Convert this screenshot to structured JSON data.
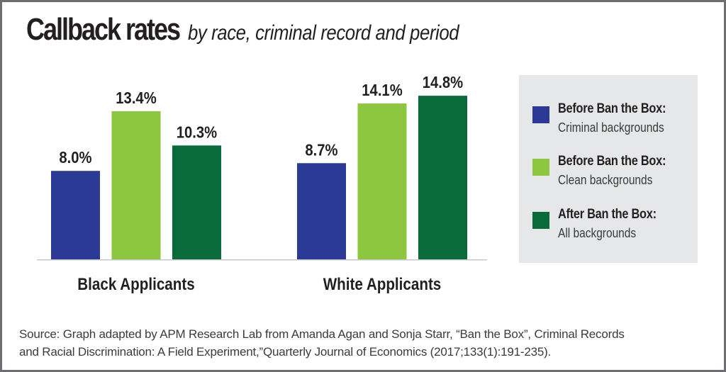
{
  "title": {
    "main": "Callback rates",
    "subtitle": "by race, criminal record and period"
  },
  "legend": {
    "items": [
      {
        "line1": "Before Ban the Box:",
        "line2": "Criminal backgrounds",
        "color": "#2b3a94"
      },
      {
        "line1": "Before Ban the Box:",
        "line2": "Clean backgrounds",
        "color": "#8dc63f"
      },
      {
        "line1": "After Ban the Box:",
        "line2": "All backgrounds",
        "color": "#0a6b3a"
      }
    ]
  },
  "source": {
    "line1": "Source: Graph adapted by APM Research Lab from Amanda Agan and Sonja Starr, “Ban the Box”, Criminal Records",
    "line2": "and Racial Discrimination: A Field Experiment,”Quarterly Journal of Economics (2017;133(1):191-235)."
  },
  "chart_data": {
    "type": "bar",
    "title": "Callback rates by race, criminal record and period",
    "xlabel": "",
    "ylabel": "",
    "ylim": [
      0,
      15
    ],
    "grid": false,
    "legend_position": "right",
    "categories": [
      "Black Applicants",
      "White Applicants"
    ],
    "series": [
      {
        "name": "Before Ban the Box: Criminal backgrounds",
        "color": "#2b3a94",
        "values": [
          8.0,
          8.7
        ],
        "labels": [
          "8.0%",
          "8.7%"
        ]
      },
      {
        "name": "Before Ban the Box: Clean backgrounds",
        "color": "#8dc63f",
        "values": [
          13.4,
          14.1
        ],
        "labels": [
          "13.4%",
          "14.1%"
        ]
      },
      {
        "name": "After Ban the Box: All backgrounds",
        "color": "#0a6b3a",
        "values": [
          10.3,
          14.8
        ],
        "labels": [
          "10.3%",
          "14.8%"
        ]
      }
    ]
  }
}
